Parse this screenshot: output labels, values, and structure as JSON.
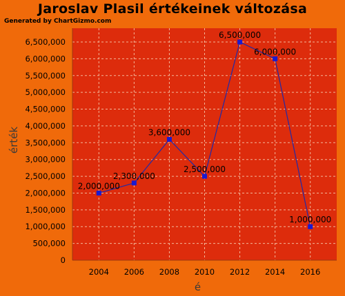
{
  "header": {
    "title": "Jaroslav Plasil értékeinek változása",
    "generated": "Generated by ChartGizmo.com"
  },
  "colors": {
    "background": "#f06a0a",
    "plot_area": "#dd2c0c",
    "line": "#2a2aa0",
    "marker": "#1a1ad0",
    "grid": "#f3b79a"
  },
  "chart_data": {
    "type": "line",
    "title": "Jaroslav Plasil értékeinek változása",
    "xlabel": "é",
    "ylabel": "érték",
    "x": [
      2004,
      2006,
      2008,
      2010,
      2012,
      2014,
      2016
    ],
    "x_ticks": [
      "2004",
      "2006",
      "2008",
      "2010",
      "2012",
      "2014",
      "2016"
    ],
    "series": [
      {
        "values": [
          2000000,
          2300000,
          3600000,
          2500000,
          6500000,
          6000000,
          1000000
        ]
      }
    ],
    "data_labels": [
      "2,000,000",
      "2,300,000",
      "3,600,000",
      "2,500,000",
      "6,500,000",
      "6,000,000",
      "1,000,000"
    ],
    "y_ticks": [
      "0",
      "500,000",
      "1,000,000",
      "1,500,000",
      "2,000,000",
      "2,500,000",
      "3,000,000",
      "3,500,000",
      "4,000,000",
      "4,500,000",
      "5,000,000",
      "5,500,000",
      "6,000,000",
      "6,500,000"
    ],
    "ylim": [
      0,
      6500000
    ],
    "xlim": [
      2002.5,
      2017.5
    ],
    "grid": true,
    "legend": "none"
  }
}
